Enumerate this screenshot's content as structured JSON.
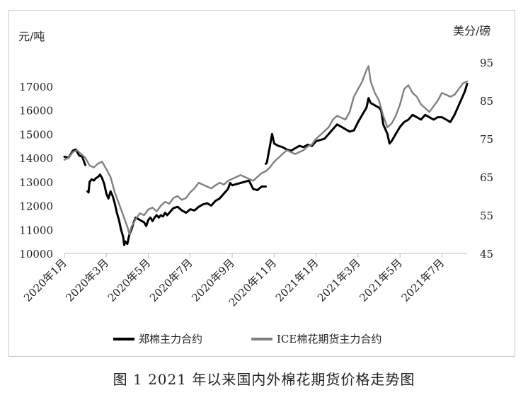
{
  "chart_data": {
    "type": "line",
    "caption": "图 1 2021 年以来国内外棉花期货价格走势图",
    "left_axis": {
      "unit": "元/吨",
      "ylim": [
        10000,
        18000
      ],
      "ticks": [
        10000,
        11000,
        12000,
        13000,
        14000,
        15000,
        16000,
        17000
      ]
    },
    "right_axis": {
      "unit": "美分/磅",
      "ylim": [
        45,
        95
      ],
      "ticks": [
        45,
        55,
        65,
        75,
        85,
        95
      ]
    },
    "x_ticks": [
      "2020年1月",
      "2020年3月",
      "2020年5月",
      "2020年7月",
      "2020年9月",
      "2020年11月",
      "2021年1月",
      "2021年3月",
      "2021年5月",
      "2021年7月"
    ],
    "xlim": [
      0,
      19.2
    ],
    "legend_position": "bottom",
    "series": [
      {
        "name": "郑棉主力合约",
        "axis": "left",
        "color": "#000000",
        "points": [
          [
            0.0,
            14050
          ],
          [
            0.2,
            14000
          ],
          [
            0.4,
            14300
          ],
          [
            0.55,
            14350
          ],
          [
            0.7,
            14100
          ],
          [
            0.85,
            14050
          ],
          [
            0.95,
            13800
          ],
          [
            1.0,
            13700
          ],
          [
            1.1,
            null
          ],
          [
            1.1,
            12600
          ],
          [
            1.15,
            12550
          ],
          [
            1.2,
            13000
          ],
          [
            1.3,
            13100
          ],
          [
            1.4,
            13050
          ],
          [
            1.5,
            13150
          ],
          [
            1.6,
            13200
          ],
          [
            1.7,
            13300
          ],
          [
            1.8,
            13150
          ],
          [
            1.9,
            12900
          ],
          [
            2.0,
            12500
          ],
          [
            2.1,
            12300
          ],
          [
            2.2,
            12600
          ],
          [
            2.3,
            12400
          ],
          [
            2.4,
            12100
          ],
          [
            2.5,
            11700
          ],
          [
            2.6,
            11400
          ],
          [
            2.7,
            11000
          ],
          [
            2.8,
            10700
          ],
          [
            2.85,
            10350
          ],
          [
            2.9,
            10500
          ],
          [
            3.0,
            10400
          ],
          [
            3.1,
            10800
          ],
          [
            3.2,
            11000
          ],
          [
            3.3,
            11300
          ],
          [
            3.4,
            11500
          ],
          [
            3.5,
            11450
          ],
          [
            3.6,
            11400
          ],
          [
            3.7,
            11350
          ],
          [
            3.8,
            11300
          ],
          [
            3.9,
            11150
          ],
          [
            4.0,
            11400
          ],
          [
            4.1,
            11500
          ],
          [
            4.2,
            11350
          ],
          [
            4.3,
            11500
          ],
          [
            4.4,
            11600
          ],
          [
            4.5,
            11500
          ],
          [
            4.6,
            11600
          ],
          [
            4.7,
            11550
          ],
          [
            4.8,
            11700
          ],
          [
            4.9,
            11600
          ],
          [
            5.0,
            11700
          ],
          [
            5.2,
            11900
          ],
          [
            5.4,
            11950
          ],
          [
            5.6,
            11800
          ],
          [
            5.8,
            11700
          ],
          [
            6.0,
            11850
          ],
          [
            6.2,
            11800
          ],
          [
            6.4,
            11950
          ],
          [
            6.6,
            12050
          ],
          [
            6.8,
            12100
          ],
          [
            7.0,
            12000
          ],
          [
            7.2,
            12200
          ],
          [
            7.4,
            12300
          ],
          [
            7.6,
            12500
          ],
          [
            7.8,
            12700
          ],
          [
            7.9,
            12950
          ],
          [
            8.0,
            12850
          ],
          [
            8.2,
            12900
          ],
          [
            8.4,
            12950
          ],
          [
            8.6,
            13000
          ],
          [
            8.8,
            13050
          ],
          [
            9.0,
            12700
          ],
          [
            9.2,
            12650
          ],
          [
            9.4,
            12800
          ],
          [
            9.6,
            12800
          ],
          [
            9.7,
            null
          ],
          [
            9.6,
            13750
          ],
          [
            9.65,
            13800
          ],
          [
            9.8,
            14500
          ],
          [
            9.9,
            15000
          ],
          [
            10.0,
            14600
          ],
          [
            10.2,
            14500
          ],
          [
            10.4,
            14450
          ],
          [
            10.6,
            14350
          ],
          [
            10.8,
            14300
          ],
          [
            11.0,
            14400
          ],
          [
            11.2,
            14500
          ],
          [
            11.4,
            14450
          ],
          [
            11.6,
            14550
          ],
          [
            11.8,
            14500
          ],
          [
            12.0,
            14700
          ],
          [
            12.2,
            14750
          ],
          [
            12.4,
            14800
          ],
          [
            12.6,
            15000
          ],
          [
            12.8,
            15200
          ],
          [
            13.0,
            15400
          ],
          [
            13.2,
            15300
          ],
          [
            13.4,
            15200
          ],
          [
            13.6,
            15100
          ],
          [
            13.8,
            15150
          ],
          [
            14.0,
            15500
          ],
          [
            14.2,
            15800
          ],
          [
            14.4,
            16100
          ],
          [
            14.5,
            16500
          ],
          [
            14.6,
            16300
          ],
          [
            14.8,
            16200
          ],
          [
            15.0,
            16100
          ],
          [
            15.1,
            16000
          ],
          [
            15.2,
            15400
          ],
          [
            15.4,
            15000
          ],
          [
            15.5,
            14600
          ],
          [
            15.6,
            14700
          ],
          [
            15.8,
            15000
          ],
          [
            16.0,
            15300
          ],
          [
            16.2,
            15500
          ],
          [
            16.4,
            15600
          ],
          [
            16.6,
            15800
          ],
          [
            16.8,
            15700
          ],
          [
            17.0,
            15600
          ],
          [
            17.2,
            15800
          ],
          [
            17.4,
            15700
          ],
          [
            17.6,
            15600
          ],
          [
            17.8,
            15700
          ],
          [
            18.0,
            15700
          ],
          [
            18.2,
            15600
          ],
          [
            18.4,
            15500
          ],
          [
            18.6,
            15800
          ],
          [
            18.8,
            16200
          ],
          [
            19.0,
            16600
          ],
          [
            19.1,
            16800
          ],
          [
            19.2,
            17100
          ]
        ]
      },
      {
        "name": "ICE棉花期货主力合约",
        "axis": "right",
        "color": "#808080",
        "points": [
          [
            0.0,
            69.5
          ],
          [
            0.2,
            70.0
          ],
          [
            0.4,
            71.5
          ],
          [
            0.6,
            72.0
          ],
          [
            0.8,
            71.0
          ],
          [
            1.0,
            70.0
          ],
          [
            1.2,
            68.0
          ],
          [
            1.4,
            67.5
          ],
          [
            1.6,
            68.5
          ],
          [
            1.8,
            69.0
          ],
          [
            2.0,
            67.0
          ],
          [
            2.2,
            65.0
          ],
          [
            2.4,
            61.0
          ],
          [
            2.6,
            58.0
          ],
          [
            2.8,
            55.0
          ],
          [
            3.0,
            52.0
          ],
          [
            3.1,
            50.0
          ],
          [
            3.2,
            52.0
          ],
          [
            3.4,
            54.0
          ],
          [
            3.6,
            55.5
          ],
          [
            3.8,
            55.0
          ],
          [
            4.0,
            56.5
          ],
          [
            4.2,
            57.0
          ],
          [
            4.4,
            56.0
          ],
          [
            4.6,
            57.5
          ],
          [
            4.8,
            58.5
          ],
          [
            5.0,
            58.0
          ],
          [
            5.2,
            59.5
          ],
          [
            5.4,
            60.0
          ],
          [
            5.6,
            59.0
          ],
          [
            5.8,
            59.5
          ],
          [
            6.0,
            61.0
          ],
          [
            6.2,
            62.0
          ],
          [
            6.4,
            63.5
          ],
          [
            6.6,
            63.0
          ],
          [
            6.8,
            62.5
          ],
          [
            7.0,
            62.0
          ],
          [
            7.2,
            62.8
          ],
          [
            7.4,
            63.5
          ],
          [
            7.6,
            63.0
          ],
          [
            7.8,
            64.0
          ],
          [
            8.0,
            64.5
          ],
          [
            8.2,
            65.0
          ],
          [
            8.4,
            65.5
          ],
          [
            8.6,
            65.0
          ],
          [
            8.8,
            64.5
          ],
          [
            9.0,
            64.0
          ],
          [
            9.2,
            65.0
          ],
          [
            9.4,
            66.0
          ],
          [
            9.6,
            66.5
          ],
          [
            9.8,
            67.5
          ],
          [
            10.0,
            69.0
          ],
          [
            10.2,
            70.0
          ],
          [
            10.4,
            71.0
          ],
          [
            10.6,
            72.0
          ],
          [
            10.8,
            71.5
          ],
          [
            11.0,
            71.0
          ],
          [
            11.2,
            71.5
          ],
          [
            11.4,
            72.0
          ],
          [
            11.6,
            73.0
          ],
          [
            11.8,
            73.5
          ],
          [
            12.0,
            75.0
          ],
          [
            12.2,
            76.0
          ],
          [
            12.4,
            77.0
          ],
          [
            12.6,
            78.0
          ],
          [
            12.8,
            80.0
          ],
          [
            13.0,
            81.0
          ],
          [
            13.2,
            80.5
          ],
          [
            13.4,
            80.0
          ],
          [
            13.6,
            82.0
          ],
          [
            13.8,
            86.0
          ],
          [
            14.0,
            88.0
          ],
          [
            14.2,
            90.0
          ],
          [
            14.4,
            93.0
          ],
          [
            14.5,
            94.0
          ],
          [
            14.6,
            90.0
          ],
          [
            14.8,
            87.0
          ],
          [
            15.0,
            85.0
          ],
          [
            15.2,
            81.0
          ],
          [
            15.4,
            78.0
          ],
          [
            15.6,
            79.0
          ],
          [
            15.8,
            81.0
          ],
          [
            16.0,
            84.0
          ],
          [
            16.2,
            88.0
          ],
          [
            16.4,
            89.0
          ],
          [
            16.6,
            87.0
          ],
          [
            16.8,
            86.0
          ],
          [
            17.0,
            84.0
          ],
          [
            17.2,
            83.0
          ],
          [
            17.4,
            82.0
          ],
          [
            17.6,
            83.5
          ],
          [
            17.8,
            85.0
          ],
          [
            18.0,
            87.0
          ],
          [
            18.2,
            86.5
          ],
          [
            18.4,
            86.0
          ],
          [
            18.6,
            86.5
          ],
          [
            18.8,
            88.0
          ],
          [
            19.0,
            89.5
          ],
          [
            19.2,
            90.0
          ]
        ]
      }
    ]
  }
}
